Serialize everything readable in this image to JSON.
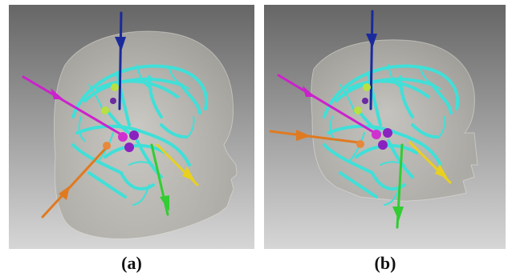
{
  "figure": {
    "panels": [
      {
        "label": "(a)"
      },
      {
        "label": "(b)"
      }
    ],
    "colors": {
      "background_top": "#6a6a6a",
      "background_bottom": "#d6d6d6",
      "vessels": "#3fe0d8",
      "head_translucent": "#c9c6bf",
      "arrow_blue": "#1a2a9c",
      "arrow_magenta": "#cc22cc",
      "arrow_orange": "#e07a20",
      "arrow_yellow": "#e8d020",
      "arrow_green": "#33cc33",
      "sphere_purple": "#8a22c0",
      "sphere_magenta": "#d030d0",
      "sphere_orange": "#e8883a",
      "sphere_lime": "#b8e040"
    }
  }
}
